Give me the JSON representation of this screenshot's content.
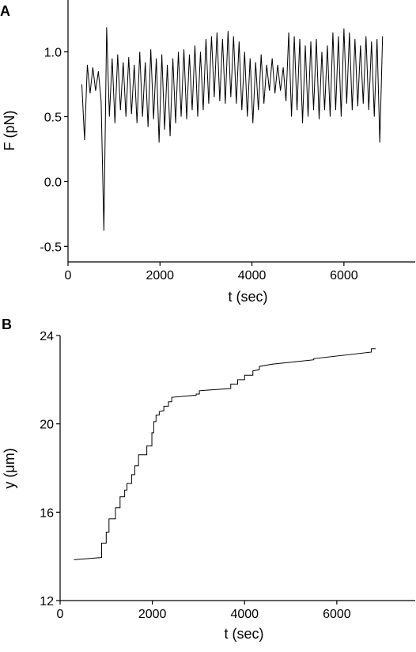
{
  "chart_data": [
    {
      "type": "line",
      "panel_label": "A",
      "x_label": "t (sec)",
      "y_label": "F (pN)",
      "xlim": [
        0,
        7550
      ],
      "xticks": [
        0,
        2000,
        4000,
        6000
      ],
      "ylim": [
        -0.62,
        1.4
      ],
      "yticks": [
        {
          "value": -0.5,
          "label": "-0.5"
        },
        {
          "value": 0,
          "label": "0.0"
        },
        {
          "value": 0.5,
          "label": "0.5"
        },
        {
          "value": 1,
          "label": "1.0"
        }
      ],
      "x": [
        300,
        360,
        420,
        480,
        540,
        600,
        660,
        720,
        780,
        840,
        900,
        960,
        1020,
        1080,
        1140,
        1200,
        1260,
        1320,
        1380,
        1440,
        1500,
        1560,
        1620,
        1680,
        1740,
        1800,
        1860,
        1920,
        1980,
        2040,
        2100,
        2160,
        2220,
        2280,
        2340,
        2400,
        2460,
        2520,
        2580,
        2640,
        2700,
        2760,
        2820,
        2880,
        2940,
        3000,
        3060,
        3120,
        3180,
        3240,
        3300,
        3360,
        3420,
        3480,
        3540,
        3600,
        3660,
        3720,
        3780,
        3840,
        3900,
        3960,
        4020,
        4080,
        4140,
        4200,
        4260,
        4320,
        4380,
        4440,
        4500,
        4560,
        4620,
        4680,
        4740,
        4800,
        4860,
        4920,
        4980,
        5040,
        5100,
        5160,
        5220,
        5280,
        5340,
        5400,
        5460,
        5520,
        5580,
        5640,
        5700,
        5760,
        5820,
        5880,
        5940,
        6000,
        6060,
        6120,
        6180,
        6240,
        6300,
        6360,
        6420,
        6480,
        6540,
        6600,
        6660,
        6720,
        6780,
        6840
      ],
      "series": [
        {
          "color": "#000000",
          "values": [
            0.75,
            0.32,
            0.9,
            0.68,
            0.88,
            0.7,
            0.85,
            0.62,
            -0.38,
            1.19,
            0.5,
            0.95,
            0.45,
            0.98,
            0.55,
            0.92,
            0.5,
            0.96,
            0.52,
            0.9,
            0.45,
            1.0,
            0.5,
            0.92,
            0.42,
            1.02,
            0.48,
            0.95,
            0.3,
            0.98,
            0.4,
            0.9,
            0.35,
            0.95,
            0.45,
            1.0,
            0.5,
            1.02,
            0.48,
            0.98,
            0.55,
            1.05,
            0.5,
            1.0,
            0.55,
            1.1,
            0.6,
            1.12,
            0.65,
            1.15,
            0.62,
            1.1,
            0.6,
            1.16,
            0.65,
            1.12,
            0.6,
            1.08,
            0.55,
            1.0,
            0.5,
            0.95,
            0.45,
            0.92,
            0.55,
            0.98,
            0.6,
            0.9,
            0.7,
            0.95,
            0.68,
            0.9,
            0.7,
            0.88,
            0.62,
            1.15,
            0.5,
            1.12,
            0.55,
            1.1,
            0.45,
            1.05,
            0.5,
            1.08,
            0.55,
            1.1,
            0.48,
            1.0,
            0.55,
            1.05,
            0.5,
            1.15,
            0.55,
            1.12,
            0.5,
            1.18,
            0.6,
            1.15,
            0.55,
            1.1,
            0.58,
            1.05,
            0.6,
            1.12,
            0.55,
            1.08,
            0.5,
            1.1,
            0.3,
            1.12
          ]
        }
      ]
    },
    {
      "type": "line",
      "panel_label": "B",
      "x_label": "t (sec)",
      "y_label": "y (μm)",
      "xlim": [
        0,
        7700
      ],
      "xticks": [
        0,
        2000,
        4000,
        6000
      ],
      "ylim": [
        12,
        24
      ],
      "yticks": [
        12,
        16,
        20,
        24
      ],
      "x": [
        300,
        900,
        900,
        1000,
        1000,
        1060,
        1060,
        1200,
        1200,
        1300,
        1300,
        1400,
        1400,
        1450,
        1450,
        1550,
        1550,
        1620,
        1620,
        1700,
        1700,
        1880,
        1880,
        1990,
        1990,
        2030,
        2030,
        2080,
        2080,
        2150,
        2150,
        2250,
        2250,
        2350,
        2350,
        2420,
        2420,
        2950,
        2950,
        3020,
        3020,
        3700,
        3700,
        3850,
        3850,
        4000,
        4000,
        4180,
        4180,
        4320,
        4320,
        4600,
        5500,
        5500,
        6750,
        6750,
        6840
      ],
      "series": [
        {
          "color": "#000000",
          "values": [
            13.85,
            13.95,
            14.6,
            14.6,
            15.1,
            15.1,
            15.7,
            15.7,
            16.2,
            16.2,
            16.7,
            16.7,
            17.0,
            17.0,
            17.3,
            17.3,
            17.7,
            17.7,
            18.1,
            18.1,
            18.6,
            18.6,
            19.0,
            19.0,
            19.6,
            19.6,
            20.1,
            20.1,
            20.4,
            20.4,
            20.55,
            20.6,
            20.8,
            20.8,
            21.0,
            21.0,
            21.2,
            21.3,
            21.35,
            21.35,
            21.5,
            21.6,
            21.8,
            21.8,
            22.0,
            22.0,
            22.2,
            22.2,
            22.4,
            22.45,
            22.6,
            22.7,
            22.9,
            22.95,
            23.25,
            23.4,
            23.4
          ]
        }
      ]
    }
  ]
}
